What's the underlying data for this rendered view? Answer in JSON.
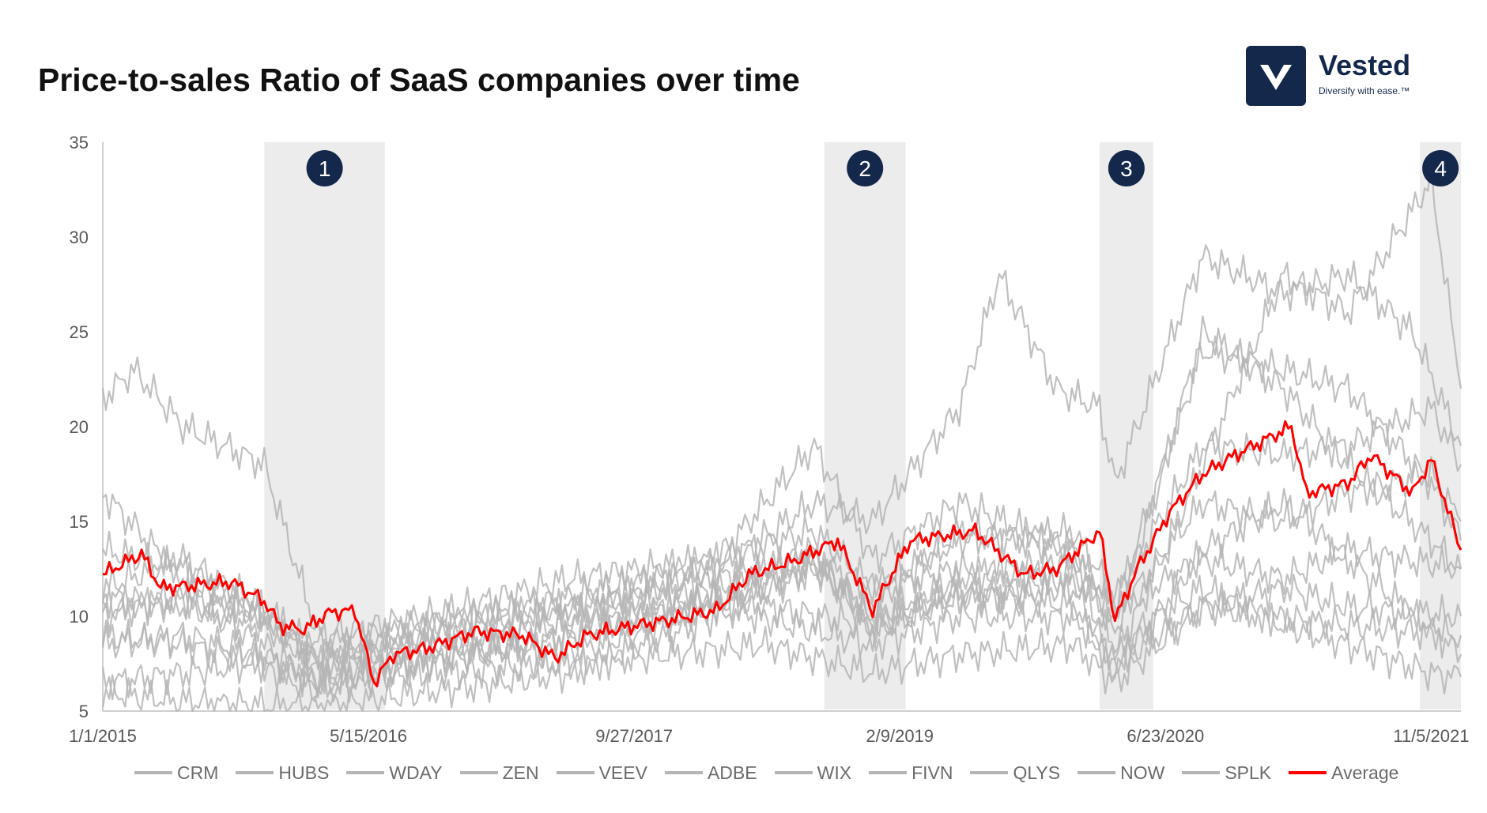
{
  "title": "Price-to-sales Ratio of SaaS companies over time",
  "brand": {
    "name": "Vested",
    "tagline": "Diversify with ease.™"
  },
  "chart_data": {
    "type": "line",
    "title": "Price-to-sales Ratio of SaaS companies over time",
    "xlabel": "",
    "ylabel": "",
    "ylim": [
      5,
      35
    ],
    "y_ticks": [
      5,
      10,
      15,
      20,
      25,
      30,
      35
    ],
    "xlim": [
      "2015-01-01",
      "2021-12-31"
    ],
    "x_tick_labels": [
      {
        "label": "1/1/2015",
        "date": "2015-01-01"
      },
      {
        "label": "5/15/2016",
        "date": "2016-05-15"
      },
      {
        "label": "9/27/2017",
        "date": "2017-09-27"
      },
      {
        "label": "2/9/2019",
        "date": "2019-02-09"
      },
      {
        "label": "6/23/2020",
        "date": "2020-06-23"
      },
      {
        "label": "11/5/2021",
        "date": "2021-11-05"
      }
    ],
    "grid": false,
    "legend_position": "bottom",
    "colors": {
      "peers": "#b5b5b5",
      "average": "#ff0000",
      "band": "#ececec",
      "badge": "#14284b"
    },
    "highlight_bands": [
      {
        "label": "1",
        "start": "2015-11-01",
        "end": "2016-06-15"
      },
      {
        "label": "2",
        "start": "2018-09-20",
        "end": "2019-02-20"
      },
      {
        "label": "3",
        "start": "2020-02-20",
        "end": "2020-05-31"
      },
      {
        "label": "4",
        "start": "2021-10-15",
        "end": "2021-12-31"
      }
    ],
    "series": [
      {
        "name": "CRM",
        "color": "#b5b5b5",
        "points": [
          [
            "2015-01-01",
            6.5
          ],
          [
            "2015-06-01",
            7.0
          ],
          [
            "2015-10-20",
            7.5
          ],
          [
            "2016-02-10",
            6.0
          ],
          [
            "2016-06-01",
            6.8
          ],
          [
            "2017-01-01",
            7.2
          ],
          [
            "2017-09-27",
            7.8
          ],
          [
            "2018-06-01",
            8.5
          ],
          [
            "2018-12-20",
            7.0
          ],
          [
            "2019-06-01",
            8.0
          ],
          [
            "2020-01-01",
            8.5
          ],
          [
            "2020-03-20",
            6.5
          ],
          [
            "2020-09-01",
            10.5
          ],
          [
            "2021-01-01",
            10.0
          ],
          [
            "2021-06-01",
            9.5
          ],
          [
            "2021-12-31",
            9.0
          ]
        ]
      },
      {
        "name": "HUBS",
        "color": "#b5b5b5",
        "points": [
          [
            "2015-01-01",
            8.5
          ],
          [
            "2015-06-01",
            9.0
          ],
          [
            "2015-11-01",
            8.0
          ],
          [
            "2016-02-10",
            6.5
          ],
          [
            "2016-09-01",
            7.5
          ],
          [
            "2017-06-01",
            9.0
          ],
          [
            "2018-03-01",
            11.0
          ],
          [
            "2018-12-20",
            9.5
          ],
          [
            "2019-06-01",
            11.0
          ],
          [
            "2020-01-01",
            11.5
          ],
          [
            "2020-03-20",
            7.5
          ],
          [
            "2020-09-01",
            18.0
          ],
          [
            "2021-02-01",
            28.0
          ],
          [
            "2021-06-01",
            26.0
          ],
          [
            "2021-11-05",
            33.0
          ],
          [
            "2021-12-31",
            22.0
          ]
        ]
      },
      {
        "name": "WDAY",
        "color": "#b5b5b5",
        "points": [
          [
            "2015-01-01",
            11.0
          ],
          [
            "2015-06-01",
            10.5
          ],
          [
            "2015-11-01",
            9.5
          ],
          [
            "2016-02-10",
            7.5
          ],
          [
            "2016-09-01",
            8.5
          ],
          [
            "2017-06-01",
            9.5
          ],
          [
            "2018-03-01",
            10.5
          ],
          [
            "2018-12-20",
            8.5
          ],
          [
            "2019-06-01",
            10.0
          ],
          [
            "2020-01-01",
            10.0
          ],
          [
            "2020-03-20",
            7.5
          ],
          [
            "2020-09-01",
            10.5
          ],
          [
            "2021-02-01",
            11.5
          ],
          [
            "2021-06-01",
            10.5
          ],
          [
            "2021-12-31",
            10.0
          ]
        ]
      },
      {
        "name": "ZEN",
        "color": "#b5b5b5",
        "points": [
          [
            "2015-01-01",
            13.5
          ],
          [
            "2015-06-01",
            12.5
          ],
          [
            "2015-11-01",
            10.0
          ],
          [
            "2016-02-10",
            7.5
          ],
          [
            "2016-09-01",
            8.5
          ],
          [
            "2017-06-01",
            8.0
          ],
          [
            "2018-03-01",
            10.5
          ],
          [
            "2018-09-01",
            13.0
          ],
          [
            "2018-12-20",
            9.0
          ],
          [
            "2019-06-01",
            11.5
          ],
          [
            "2020-01-01",
            10.5
          ],
          [
            "2020-03-20",
            7.0
          ],
          [
            "2020-09-01",
            13.5
          ],
          [
            "2021-02-01",
            16.0
          ],
          [
            "2021-06-01",
            13.0
          ],
          [
            "2021-12-31",
            8.0
          ]
        ]
      },
      {
        "name": "VEEV",
        "color": "#b5b5b5",
        "points": [
          [
            "2015-01-01",
            10.0
          ],
          [
            "2015-06-01",
            11.0
          ],
          [
            "2015-11-01",
            8.5
          ],
          [
            "2016-02-10",
            6.5
          ],
          [
            "2016-09-01",
            8.0
          ],
          [
            "2017-06-01",
            10.0
          ],
          [
            "2018-03-01",
            12.5
          ],
          [
            "2018-09-01",
            16.0
          ],
          [
            "2018-12-20",
            15.0
          ],
          [
            "2019-06-01",
            21.0
          ],
          [
            "2019-08-15",
            28.0
          ],
          [
            "2019-12-01",
            22.0
          ],
          [
            "2020-02-20",
            21.0
          ],
          [
            "2020-03-20",
            17.0
          ],
          [
            "2020-09-01",
            29.0
          ],
          [
            "2021-02-01",
            27.0
          ],
          [
            "2021-06-01",
            28.0
          ],
          [
            "2021-10-01",
            25.0
          ],
          [
            "2021-12-31",
            19.0
          ]
        ]
      },
      {
        "name": "ADBE",
        "color": "#b5b5b5",
        "points": [
          [
            "2015-01-01",
            9.0
          ],
          [
            "2015-06-01",
            8.5
          ],
          [
            "2015-11-01",
            7.5
          ],
          [
            "2016-02-10",
            6.5
          ],
          [
            "2016-09-01",
            7.5
          ],
          [
            "2017-06-01",
            9.0
          ],
          [
            "2018-03-01",
            11.0
          ],
          [
            "2018-09-01",
            12.5
          ],
          [
            "2018-12-20",
            10.0
          ],
          [
            "2019-06-01",
            12.0
          ],
          [
            "2020-01-01",
            13.0
          ],
          [
            "2020-03-20",
            10.0
          ],
          [
            "2020-09-01",
            16.0
          ],
          [
            "2021-02-01",
            15.0
          ],
          [
            "2021-06-01",
            16.5
          ],
          [
            "2021-11-05",
            17.5
          ],
          [
            "2021-12-31",
            15.0
          ]
        ]
      },
      {
        "name": "WIX",
        "color": "#b5b5b5",
        "points": [
          [
            "2015-01-01",
            21.5
          ],
          [
            "2015-03-01",
            23.0
          ],
          [
            "2015-06-01",
            20.0
          ],
          [
            "2015-11-01",
            18.0
          ],
          [
            "2016-02-10",
            9.0
          ],
          [
            "2016-09-01",
            10.0
          ],
          [
            "2017-06-01",
            12.0
          ],
          [
            "2018-03-01",
            13.0
          ],
          [
            "2018-09-01",
            19.0
          ],
          [
            "2018-12-20",
            13.0
          ],
          [
            "2019-06-01",
            16.0
          ],
          [
            "2020-01-01",
            13.5
          ],
          [
            "2020-03-20",
            9.0
          ],
          [
            "2020-09-01",
            25.0
          ],
          [
            "2021-02-01",
            22.0
          ],
          [
            "2021-06-01",
            18.0
          ],
          [
            "2021-11-05",
            14.0
          ],
          [
            "2021-12-31",
            12.5
          ]
        ]
      },
      {
        "name": "FIVN",
        "color": "#b5b5b5",
        "points": [
          [
            "2015-01-01",
            6.0
          ],
          [
            "2015-06-01",
            5.5
          ],
          [
            "2015-11-01",
            5.3
          ],
          [
            "2016-02-10",
            5.2
          ],
          [
            "2016-09-01",
            6.0
          ],
          [
            "2017-06-01",
            7.0
          ],
          [
            "2018-03-01",
            10.0
          ],
          [
            "2018-09-01",
            12.5
          ],
          [
            "2018-12-20",
            10.5
          ],
          [
            "2019-06-01",
            14.5
          ],
          [
            "2020-01-01",
            13.5
          ],
          [
            "2020-03-20",
            10.5
          ],
          [
            "2020-09-01",
            24.0
          ],
          [
            "2021-02-01",
            23.0
          ],
          [
            "2021-06-01",
            22.0
          ],
          [
            "2021-11-05",
            17.0
          ],
          [
            "2021-12-31",
            14.0
          ]
        ]
      },
      {
        "name": "QLYS",
        "color": "#b5b5b5",
        "points": [
          [
            "2015-01-01",
            16.5
          ],
          [
            "2015-06-01",
            12.0
          ],
          [
            "2015-11-01",
            10.0
          ],
          [
            "2016-02-10",
            8.5
          ],
          [
            "2016-09-01",
            9.5
          ],
          [
            "2017-06-01",
            10.5
          ],
          [
            "2018-03-01",
            12.0
          ],
          [
            "2018-09-01",
            13.0
          ],
          [
            "2018-12-20",
            11.5
          ],
          [
            "2019-06-01",
            12.5
          ],
          [
            "2020-01-01",
            12.0
          ],
          [
            "2020-03-20",
            10.5
          ],
          [
            "2020-09-01",
            13.0
          ],
          [
            "2021-02-01",
            12.0
          ],
          [
            "2021-06-01",
            13.5
          ],
          [
            "2021-12-31",
            12.5
          ]
        ]
      },
      {
        "name": "NOW",
        "color": "#b5b5b5",
        "points": [
          [
            "2015-01-01",
            10.5
          ],
          [
            "2015-06-01",
            11.0
          ],
          [
            "2015-11-01",
            10.0
          ],
          [
            "2016-02-10",
            8.0
          ],
          [
            "2016-09-01",
            9.5
          ],
          [
            "2017-06-01",
            11.0
          ],
          [
            "2018-03-01",
            13.0
          ],
          [
            "2018-09-01",
            14.5
          ],
          [
            "2018-12-20",
            11.5
          ],
          [
            "2019-06-01",
            14.0
          ],
          [
            "2020-01-01",
            14.5
          ],
          [
            "2020-03-20",
            11.0
          ],
          [
            "2020-09-01",
            19.0
          ],
          [
            "2021-02-01",
            18.5
          ],
          [
            "2021-06-01",
            19.0
          ],
          [
            "2021-11-05",
            21.0
          ],
          [
            "2021-12-31",
            18.0
          ]
        ]
      },
      {
        "name": "SPLK",
        "color": "#b5b5b5",
        "points": [
          [
            "2015-01-01",
            11.5
          ],
          [
            "2015-06-01",
            13.0
          ],
          [
            "2015-11-01",
            10.5
          ],
          [
            "2016-02-10",
            7.5
          ],
          [
            "2016-09-01",
            9.0
          ],
          [
            "2017-06-01",
            10.5
          ],
          [
            "2018-03-01",
            11.5
          ],
          [
            "2018-09-01",
            13.5
          ],
          [
            "2018-12-20",
            9.5
          ],
          [
            "2019-06-01",
            11.0
          ],
          [
            "2020-01-01",
            12.0
          ],
          [
            "2020-03-20",
            8.5
          ],
          [
            "2020-09-01",
            11.5
          ],
          [
            "2021-02-01",
            9.5
          ],
          [
            "2021-06-01",
            8.5
          ],
          [
            "2021-11-05",
            7.0
          ],
          [
            "2021-12-31",
            6.8
          ]
        ]
      },
      {
        "name": "Average",
        "color": "#ff0000",
        "points": [
          [
            "2015-01-01",
            12.2
          ],
          [
            "2015-03-15",
            13.3
          ],
          [
            "2015-04-20",
            11.5
          ],
          [
            "2015-09-01",
            11.8
          ],
          [
            "2015-11-01",
            10.8
          ],
          [
            "2015-12-01",
            9.5
          ],
          [
            "2016-01-15",
            9.3
          ],
          [
            "2016-03-01",
            10.2
          ],
          [
            "2016-04-20",
            10.3
          ],
          [
            "2016-05-25",
            6.5
          ],
          [
            "2016-07-01",
            8.0
          ],
          [
            "2016-09-01",
            8.3
          ],
          [
            "2016-12-01",
            9.2
          ],
          [
            "2017-03-01",
            9.0
          ],
          [
            "2017-05-01",
            7.8
          ],
          [
            "2017-07-01",
            9.0
          ],
          [
            "2017-09-27",
            9.5
          ],
          [
            "2017-12-01",
            9.8
          ],
          [
            "2018-03-01",
            10.3
          ],
          [
            "2018-05-01",
            12.2
          ],
          [
            "2018-08-01",
            13.0
          ],
          [
            "2018-10-15",
            14.0
          ],
          [
            "2018-12-20",
            10.3
          ],
          [
            "2019-01-20",
            12.0
          ],
          [
            "2019-03-01",
            14.0
          ],
          [
            "2019-07-01",
            14.5
          ],
          [
            "2019-10-01",
            12.2
          ],
          [
            "2019-12-01",
            12.5
          ],
          [
            "2020-02-20",
            14.5
          ],
          [
            "2020-03-20",
            9.8
          ],
          [
            "2020-05-01",
            12.5
          ],
          [
            "2020-07-01",
            15.5
          ],
          [
            "2020-09-01",
            17.5
          ],
          [
            "2020-11-01",
            18.5
          ],
          [
            "2021-02-15",
            20.0
          ],
          [
            "2021-03-15",
            16.5
          ],
          [
            "2021-06-01",
            17.0
          ],
          [
            "2021-07-15",
            18.5
          ],
          [
            "2021-10-01",
            16.5
          ],
          [
            "2021-11-05",
            18.3
          ],
          [
            "2021-12-31",
            13.5
          ]
        ]
      }
    ],
    "legend": [
      "CRM",
      "HUBS",
      "WDAY",
      "ZEN",
      "VEEV",
      "ADBE",
      "WIX",
      "FIVN",
      "QLYS",
      "NOW",
      "SPLK",
      "Average"
    ]
  }
}
